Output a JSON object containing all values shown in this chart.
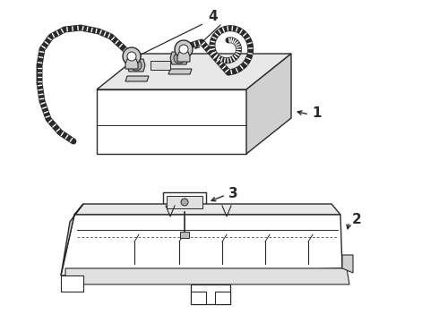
{
  "bg_color": "#ffffff",
  "line_color": "#2a2a2a",
  "label_sizes": 11,
  "fig_w": 4.9,
  "fig_h": 3.6,
  "dpi": 100
}
